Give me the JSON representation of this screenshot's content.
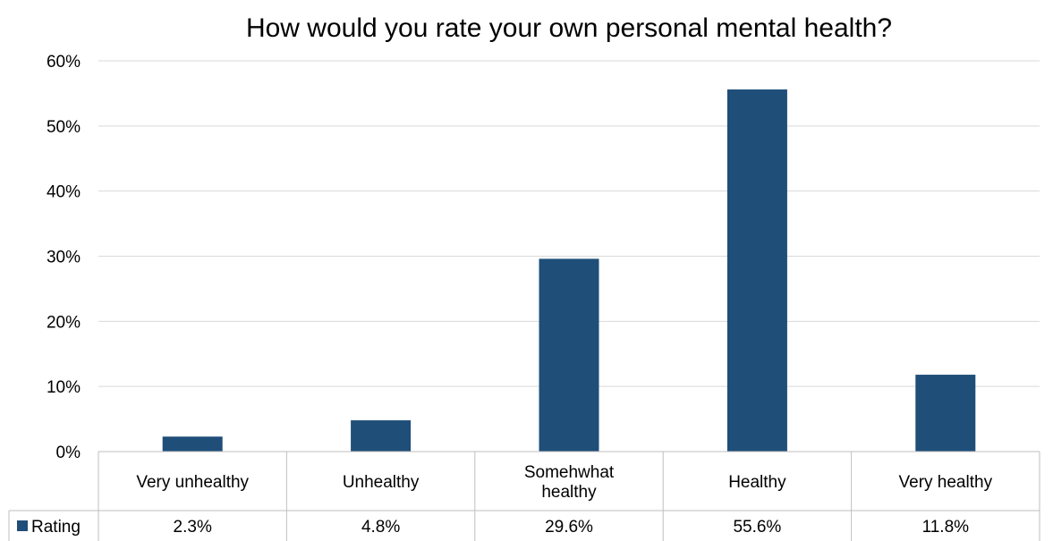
{
  "chart_data": {
    "type": "bar",
    "title": "How would you rate your own personal mental health?",
    "categories": [
      "Very unhealthy",
      "Unhealthy",
      "Somehwhat healthy",
      "Healthy",
      "Very healthy"
    ],
    "series": [
      {
        "name": "Rating",
        "values": [
          2.3,
          4.8,
          29.6,
          55.6,
          11.8
        ],
        "labels": [
          "2.3%",
          "4.8%",
          "29.6%",
          "55.6%",
          "11.8%"
        ],
        "color": "#1f4e79"
      }
    ],
    "y_ticks": [
      "0%",
      "10%",
      "20%",
      "30%",
      "40%",
      "50%",
      "60%"
    ],
    "ylim": [
      0,
      60
    ],
    "grid": true,
    "legend": "data-table-left"
  }
}
